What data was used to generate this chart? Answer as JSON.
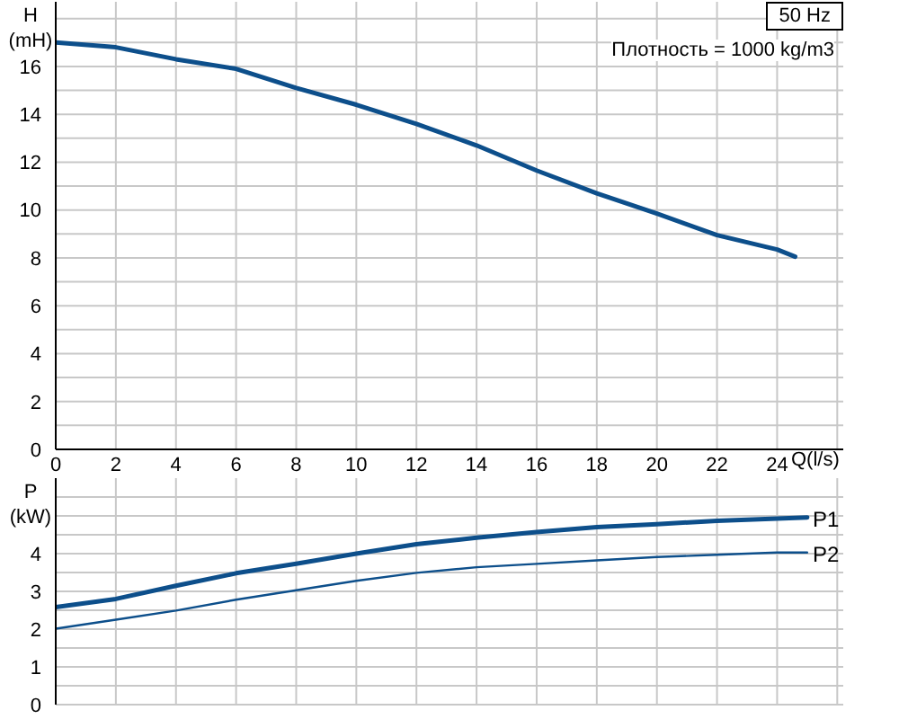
{
  "chart_data": [
    {
      "type": "line",
      "title": "50 Hz",
      "annotations": [
        "Плотность = 1000 kg/m3"
      ],
      "xlabel": "Q(l/s)",
      "ylabel": "H\n(mH)",
      "x": [
        0,
        2,
        4,
        6,
        8,
        10,
        12,
        14,
        16,
        18,
        20,
        22,
        24,
        24.6
      ],
      "series": [
        {
          "color": "#0d4f8b",
          "values": [
            17.0,
            16.8,
            16.3,
            15.9,
            15.1,
            14.4,
            13.6,
            12.7,
            11.65,
            10.7,
            9.85,
            8.95,
            8.35,
            8.05
          ]
        }
      ],
      "xlim": [
        0,
        26.2
      ],
      "ylim": [
        0,
        18.7
      ],
      "xticks": [
        0,
        2,
        4,
        6,
        8,
        10,
        12,
        14,
        16,
        18,
        20,
        22,
        24,
        {
          "value": 26,
          "label": null
        }
      ],
      "yticks": [
        0,
        {
          "value": 1,
          "label": null
        },
        2,
        {
          "value": 3,
          "label": null
        },
        4,
        {
          "value": 5,
          "label": null
        },
        6,
        {
          "value": 7,
          "label": null
        },
        8,
        {
          "value": 9,
          "label": null
        },
        10,
        {
          "value": 11,
          "label": null
        },
        12,
        {
          "value": 13,
          "label": null
        },
        14,
        {
          "value": 15,
          "label": null
        },
        16,
        {
          "value": 17,
          "label": null
        },
        {
          "value": 18,
          "label": null
        }
      ],
      "grid": true,
      "legend": false,
      "marker": "none",
      "line_style": "solid"
    },
    {
      "type": "line",
      "ylabel": "P\n(kW)",
      "x": [
        0,
        2,
        4,
        6,
        8,
        10,
        12,
        14,
        16,
        18,
        20,
        22,
        24,
        25
      ],
      "series": [
        {
          "name": "P1",
          "color": "#0d4f8b",
          "values": [
            2.58,
            2.8,
            3.15,
            3.48,
            3.73,
            4.0,
            4.25,
            4.42,
            4.57,
            4.7,
            4.78,
            4.87,
            4.93,
            4.96
          ]
        },
        {
          "name": "P2",
          "color": "#0d4f8b",
          "values": [
            2.01,
            2.25,
            2.49,
            2.78,
            3.03,
            3.28,
            3.49,
            3.64,
            3.73,
            3.82,
            3.91,
            3.97,
            4.03,
            4.03
          ]
        }
      ],
      "xlim": [
        0,
        26.2
      ],
      "ylim": [
        0,
        6
      ],
      "xticks": [
        {
          "value": 0,
          "label": null
        },
        {
          "value": 2,
          "label": null
        },
        {
          "value": 4,
          "label": null
        },
        {
          "value": 6,
          "label": null
        },
        {
          "value": 8,
          "label": null
        },
        {
          "value": 10,
          "label": null
        },
        {
          "value": 12,
          "label": null
        },
        {
          "value": 14,
          "label": null
        },
        {
          "value": 16,
          "label": null
        },
        {
          "value": 18,
          "label": null
        },
        {
          "value": 20,
          "label": null
        },
        {
          "value": 22,
          "label": null
        },
        {
          "value": 24,
          "label": null
        },
        {
          "value": 26,
          "label": null
        }
      ],
      "yticks": [
        0,
        {
          "value": 0.5,
          "label": null
        },
        1,
        {
          "value": 1.5,
          "label": null
        },
        2,
        {
          "value": 2.5,
          "label": null
        },
        3,
        {
          "value": 3.5,
          "label": null
        },
        4,
        {
          "value": 4.5,
          "label": null
        },
        {
          "value": 5,
          "label": null
        },
        {
          "value": 5.5,
          "label": null
        }
      ],
      "grid": true,
      "legend": false,
      "tick_labels": "y",
      "marker": "none",
      "line_style": "solid"
    }
  ]
}
